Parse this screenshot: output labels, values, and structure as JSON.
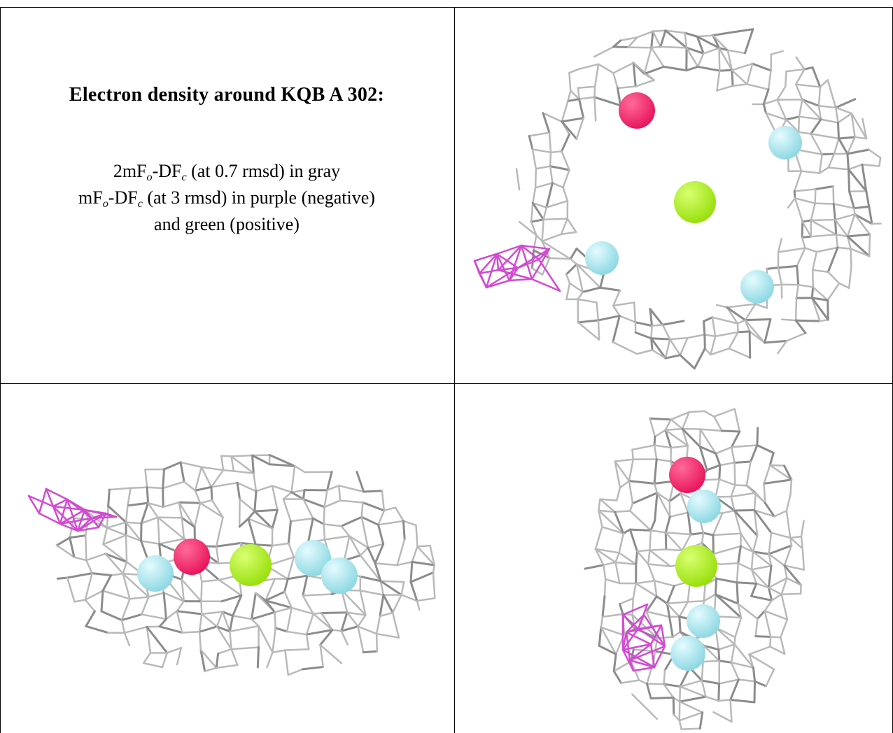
{
  "caption": {
    "title": "Electron density around KQB A 302:",
    "line1": {
      "prefix": "2mF",
      "sub_o": "o",
      "mid": "-DF",
      "sub_c": "c",
      "suffix": " (at 0.7 rmsd) in gray"
    },
    "line2": {
      "prefix": "mF",
      "sub_o": "o",
      "mid": "-DF",
      "sub_c": "c",
      "suffix": " (at 3 rmsd) in purple (negative)"
    },
    "line3": "and green (positive)"
  },
  "colors": {
    "mesh_gray": "#b9b9b9",
    "mesh_dark": "#8c8c8c",
    "negative_density": "#d24bd2",
    "atom_magenta": "#e8175d",
    "atom_green": "#9be010",
    "atom_cyan": "#8fd9e3"
  },
  "panels": [
    {
      "name": "view-top-right",
      "atoms": [
        "magenta",
        "cyan",
        "green",
        "cyan",
        "cyan"
      ]
    },
    {
      "name": "view-bottom-left",
      "atoms": [
        "cyan",
        "magenta",
        "green",
        "cyan",
        "cyan"
      ]
    },
    {
      "name": "view-bottom-right",
      "atoms": [
        "magenta",
        "cyan",
        "green",
        "cyan",
        "cyan"
      ]
    }
  ]
}
